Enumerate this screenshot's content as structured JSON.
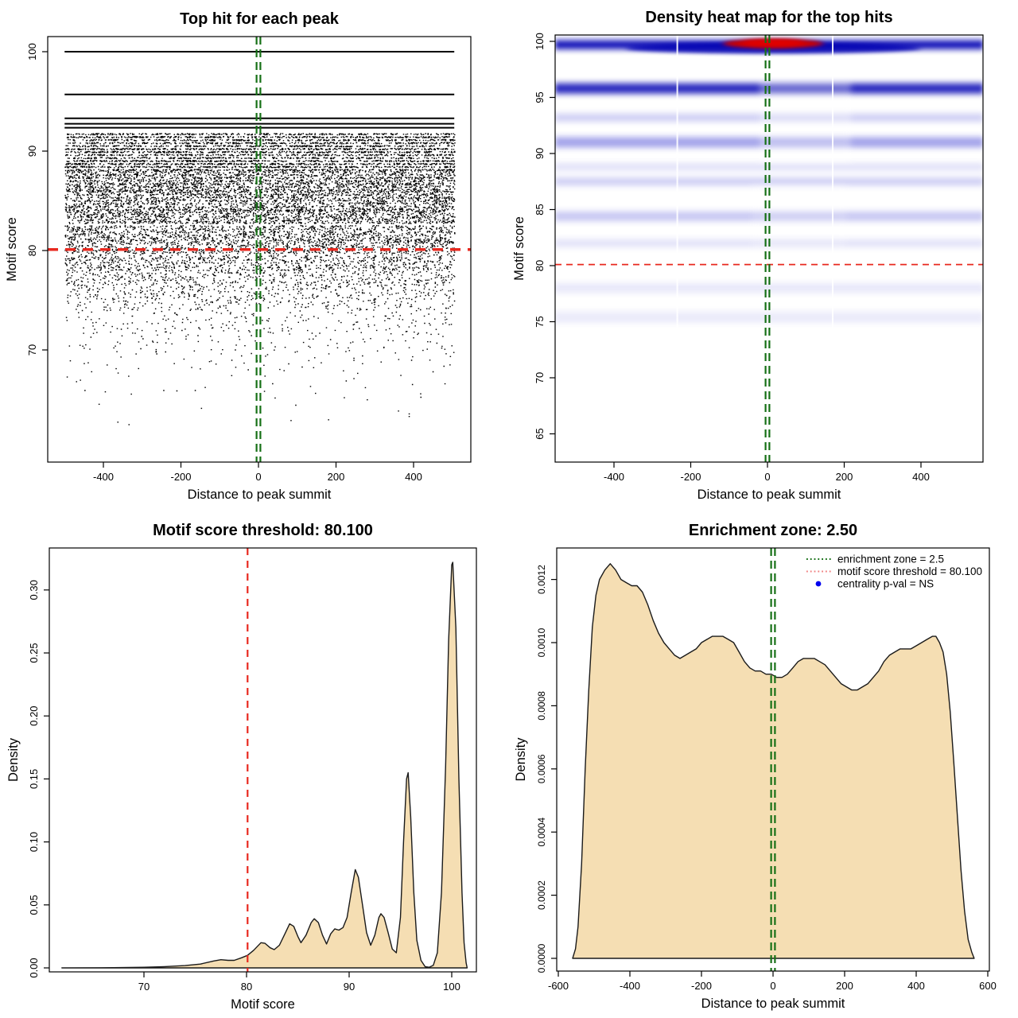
{
  "figure": {
    "background": "#ffffff",
    "colors": {
      "wheat_fill": "#F5DEB3",
      "curve_stroke": "#1a1a1a",
      "red_line": "#E8291F",
      "legend_red": "#F08080",
      "green_line": "#167016",
      "legend_blue": "#0000EE",
      "heat_blue": "#2222CC",
      "heat_dark_blue": "#0000B2",
      "heat_red": "#CC0000",
      "axis": "#000000"
    }
  },
  "chart_data": [
    {
      "id": "top-left",
      "type": "scatter",
      "title": "Top hit for each peak",
      "xlabel": "Distance to peak summit",
      "ylabel": "Motif score",
      "xlim": [
        -510,
        510
      ],
      "ylim": [
        58.5,
        101.6
      ],
      "xticks": {
        "values": [
          -400,
          -200,
          0,
          200,
          400
        ],
        "labels": [
          "-400",
          "-200",
          "0",
          "200",
          "400"
        ]
      },
      "yticks": {
        "values": [
          70,
          80,
          90,
          100
        ],
        "labels": [
          "70",
          "80",
          "90",
          "100"
        ]
      },
      "threshold_score": 80.1,
      "zone_center": 0,
      "point_color": "#000000",
      "solid_scores": [
        100.0,
        95.7,
        93.3,
        92.75,
        92.35
      ],
      "row_ranges": [
        {
          "from": 91.7,
          "to": 89.9,
          "step": 0.3,
          "density": 0.97
        },
        {
          "from": 89.6,
          "to": 88.1,
          "step": 0.3,
          "density": 0.9
        },
        {
          "from": 87.9,
          "to": 86.1,
          "step": 0.3,
          "density": 0.85
        },
        {
          "from": 85.9,
          "to": 84.1,
          "step": 0.3,
          "density": 0.78
        },
        {
          "from": 83.9,
          "to": 82.6,
          "step": 0.27,
          "density": 0.7
        },
        {
          "from": 82.4,
          "to": 81.0,
          "step": 0.27,
          "density": 0.62
        },
        {
          "from": 80.8,
          "to": 79.6,
          "step": 0.25,
          "density": 0.5
        },
        {
          "from": 79.4,
          "to": 78.1,
          "step": 0.25,
          "density": 0.38
        },
        {
          "from": 77.9,
          "to": 76.6,
          "step": 0.25,
          "density": 0.27
        },
        {
          "from": 76.4,
          "to": 75.1,
          "step": 0.25,
          "density": 0.18
        },
        {
          "from": 74.9,
          "to": 74.0,
          "step": 0.25,
          "density": 0.12
        },
        {
          "from": 73.8,
          "to": 72.0,
          "step": 0.3,
          "density": 0.07
        },
        {
          "from": 71.8,
          "to": 70.0,
          "step": 0.3,
          "density": 0.045
        },
        {
          "from": 69.8,
          "to": 68.0,
          "step": 0.35,
          "density": 0.025
        },
        {
          "from": 67.6,
          "to": 65.0,
          "step": 0.4,
          "density": 0.012
        },
        {
          "from": 64.5,
          "to": 62.3,
          "step": 0.5,
          "density": 0.005
        }
      ]
    },
    {
      "id": "top-right",
      "type": "heatmap",
      "title": "Density heat map for the top hits",
      "xlabel": "Distance to peak summit",
      "ylabel": "Motif score",
      "xlim": [
        -550,
        560
      ],
      "ylim": [
        63,
        100.5
      ],
      "xticks": {
        "values": [
          -400,
          -200,
          0,
          200,
          400
        ],
        "labels": [
          "-400",
          "-200",
          "0",
          "200",
          "400"
        ]
      },
      "yticks": {
        "values": [
          65,
          70,
          75,
          80,
          85,
          90,
          95,
          100
        ],
        "labels": [
          "65",
          "70",
          "75",
          "80",
          "85",
          "90",
          "95",
          "100"
        ]
      },
      "threshold_score": 80.1,
      "zone_center": 0,
      "bands": [
        {
          "score": 99.7,
          "intensity": 0.97,
          "half": 5.5
        },
        {
          "score": 95.8,
          "intensity": 0.85,
          "half": 6.5
        },
        {
          "score": 93.2,
          "intensity": 0.22,
          "half": 5
        },
        {
          "score": 91.0,
          "intensity": 0.42,
          "half": 6.5
        },
        {
          "score": 88.8,
          "intensity": 0.13,
          "half": 5
        },
        {
          "score": 87.5,
          "intensity": 0.22,
          "half": 5
        },
        {
          "score": 84.4,
          "intensity": 0.25,
          "half": 6
        },
        {
          "score": 82.0,
          "intensity": 0.13,
          "half": 5
        },
        {
          "score": 78.0,
          "intensity": 0.1,
          "half": 6
        },
        {
          "score": 75.4,
          "intensity": 0.09,
          "half": 7
        }
      ],
      "red_hotspot": {
        "x_center": 15,
        "score": 99.8,
        "x_halfwidth": 130,
        "note": "high-density red lens at top center"
      },
      "white_columns_x": [
        -235,
        170
      ]
    },
    {
      "id": "bottom-left",
      "type": "density-area",
      "title": "Motif score threshold: 80.100",
      "xlabel": "Motif score",
      "ylabel": "Density",
      "xlim": [
        62,
        101.5
      ],
      "ylim": [
        0,
        0.333
      ],
      "xticks": {
        "values": [
          70,
          80,
          90,
          100
        ],
        "labels": [
          "70",
          "80",
          "90",
          "100"
        ]
      },
      "yticks": {
        "values": [
          0.0,
          0.05,
          0.1,
          0.15,
          0.2,
          0.25,
          0.3
        ],
        "labels": [
          "0.00",
          "0.05",
          "0.10",
          "0.15",
          "0.20",
          "0.25",
          "0.30"
        ]
      },
      "vline": {
        "x": 80.1,
        "color_key": "red_line",
        "style": "dashed"
      },
      "curve": [
        [
          62,
          0
        ],
        [
          67,
          0.0002
        ],
        [
          70,
          0.0005
        ],
        [
          72,
          0.001
        ],
        [
          74,
          0.0018
        ],
        [
          75.5,
          0.003
        ],
        [
          76.8,
          0.0055
        ],
        [
          77.5,
          0.0065
        ],
        [
          78.2,
          0.006
        ],
        [
          78.8,
          0.006
        ],
        [
          79.5,
          0.008
        ],
        [
          80.1,
          0.01
        ],
        [
          80.7,
          0.014
        ],
        [
          81.4,
          0.02
        ],
        [
          81.8,
          0.0195
        ],
        [
          82.3,
          0.016
        ],
        [
          82.7,
          0.0145
        ],
        [
          83.2,
          0.018
        ],
        [
          83.8,
          0.028
        ],
        [
          84.2,
          0.035
        ],
        [
          84.6,
          0.033
        ],
        [
          85.0,
          0.025
        ],
        [
          85.3,
          0.02
        ],
        [
          85.8,
          0.026
        ],
        [
          86.3,
          0.036
        ],
        [
          86.6,
          0.039
        ],
        [
          87.0,
          0.036
        ],
        [
          87.4,
          0.026
        ],
        [
          87.8,
          0.019
        ],
        [
          88.2,
          0.027
        ],
        [
          88.6,
          0.031
        ],
        [
          89.0,
          0.03
        ],
        [
          89.4,
          0.032
        ],
        [
          89.8,
          0.04
        ],
        [
          90.2,
          0.06
        ],
        [
          90.6,
          0.078
        ],
        [
          90.9,
          0.072
        ],
        [
          91.3,
          0.05
        ],
        [
          91.7,
          0.028
        ],
        [
          92.1,
          0.018
        ],
        [
          92.5,
          0.026
        ],
        [
          92.9,
          0.04
        ],
        [
          93.1,
          0.043
        ],
        [
          93.4,
          0.04
        ],
        [
          93.8,
          0.028
        ],
        [
          94.2,
          0.015
        ],
        [
          94.6,
          0.012
        ],
        [
          95.0,
          0.04
        ],
        [
          95.3,
          0.1
        ],
        [
          95.6,
          0.15
        ],
        [
          95.75,
          0.155
        ],
        [
          96.0,
          0.12
        ],
        [
          96.3,
          0.06
        ],
        [
          96.6,
          0.022
        ],
        [
          97.0,
          0.006
        ],
        [
          97.4,
          0.001
        ],
        [
          97.8,
          0.0005
        ],
        [
          98.2,
          0.002
        ],
        [
          98.6,
          0.012
        ],
        [
          99.0,
          0.06
        ],
        [
          99.4,
          0.16
        ],
        [
          99.7,
          0.26
        ],
        [
          100.0,
          0.32
        ],
        [
          100.1,
          0.322
        ],
        [
          100.4,
          0.27
        ],
        [
          100.7,
          0.15
        ],
        [
          101.0,
          0.06
        ],
        [
          101.2,
          0.02
        ],
        [
          101.4,
          0.004
        ],
        [
          101.5,
          0
        ]
      ]
    },
    {
      "id": "bottom-right",
      "type": "density-area",
      "title": "Enrichment zone: 2.50",
      "xlabel": "Distance to peak summit",
      "ylabel": "Density",
      "xlim": [
        -600,
        600
      ],
      "ylim": [
        0,
        0.00134
      ],
      "xticks": {
        "values": [
          -600,
          -400,
          -200,
          0,
          200,
          400,
          600
        ],
        "labels": [
          "-600",
          "-400",
          "-200",
          "0",
          "200",
          "400",
          "600"
        ]
      },
      "yticks": {
        "values": [
          0.0,
          0.0002,
          0.0004,
          0.0006,
          0.0008,
          0.001,
          0.0012
        ],
        "labels": [
          "0.0000",
          "0.0002",
          "0.0004",
          "0.0006",
          "0.0008",
          "0.0010",
          "0.0012"
        ]
      },
      "vline": {
        "x": 0,
        "color_key": "green_line",
        "style": "double-dashed"
      },
      "curve": [
        [
          -560,
          0
        ],
        [
          -552,
          3e-05
        ],
        [
          -545,
          0.0001
        ],
        [
          -535,
          0.0003
        ],
        [
          -525,
          0.0006
        ],
        [
          -515,
          0.00085
        ],
        [
          -505,
          0.00105
        ],
        [
          -495,
          0.00115
        ],
        [
          -485,
          0.0012
        ],
        [
          -470,
          0.00123
        ],
        [
          -455,
          0.00125
        ],
        [
          -440,
          0.00123
        ],
        [
          -425,
          0.0012
        ],
        [
          -410,
          0.00119
        ],
        [
          -395,
          0.00118
        ],
        [
          -380,
          0.00118
        ],
        [
          -365,
          0.00116
        ],
        [
          -350,
          0.00112
        ],
        [
          -335,
          0.00107
        ],
        [
          -320,
          0.00103
        ],
        [
          -305,
          0.001
        ],
        [
          -290,
          0.00098
        ],
        [
          -275,
          0.00096
        ],
        [
          -260,
          0.00095
        ],
        [
          -245,
          0.00096
        ],
        [
          -230,
          0.00097
        ],
        [
          -215,
          0.00098
        ],
        [
          -200,
          0.001
        ],
        [
          -185,
          0.00101
        ],
        [
          -170,
          0.00102
        ],
        [
          -155,
          0.00102
        ],
        [
          -140,
          0.00102
        ],
        [
          -125,
          0.00101
        ],
        [
          -110,
          0.001
        ],
        [
          -95,
          0.00097
        ],
        [
          -80,
          0.00094
        ],
        [
          -65,
          0.00092
        ],
        [
          -50,
          0.00091
        ],
        [
          -35,
          0.00091
        ],
        [
          -20,
          0.0009
        ],
        [
          -5,
          0.0009
        ],
        [
          10,
          0.00089
        ],
        [
          25,
          0.00089
        ],
        [
          40,
          0.0009
        ],
        [
          55,
          0.00092
        ],
        [
          70,
          0.00094
        ],
        [
          85,
          0.00095
        ],
        [
          100,
          0.00095
        ],
        [
          115,
          0.00095
        ],
        [
          130,
          0.00094
        ],
        [
          145,
          0.00093
        ],
        [
          160,
          0.00091
        ],
        [
          175,
          0.00089
        ],
        [
          190,
          0.00087
        ],
        [
          205,
          0.00086
        ],
        [
          220,
          0.00085
        ],
        [
          235,
          0.00085
        ],
        [
          250,
          0.00086
        ],
        [
          265,
          0.00087
        ],
        [
          280,
          0.00089
        ],
        [
          295,
          0.00091
        ],
        [
          310,
          0.00094
        ],
        [
          325,
          0.00096
        ],
        [
          340,
          0.00097
        ],
        [
          355,
          0.00098
        ],
        [
          370,
          0.00098
        ],
        [
          385,
          0.00098
        ],
        [
          400,
          0.00099
        ],
        [
          415,
          0.001
        ],
        [
          430,
          0.00101
        ],
        [
          445,
          0.00102
        ],
        [
          455,
          0.00102
        ],
        [
          465,
          0.001
        ],
        [
          475,
          0.00097
        ],
        [
          485,
          0.0009
        ],
        [
          495,
          0.00078
        ],
        [
          505,
          0.00062
        ],
        [
          515,
          0.00045
        ],
        [
          525,
          0.00028
        ],
        [
          535,
          0.00015
        ],
        [
          545,
          6e-05
        ],
        [
          555,
          2e-05
        ],
        [
          562,
          0
        ]
      ],
      "legend": {
        "items": [
          {
            "symbol": "dotted",
            "color_key": "green_line",
            "label": "enrichment zone = 2.5"
          },
          {
            "symbol": "dotted",
            "color_key": "legend_red",
            "label": "motif score threshold = 80.100"
          },
          {
            "symbol": "point",
            "color_key": "legend_blue",
            "label": "centrality p-val = NS"
          }
        ]
      }
    }
  ]
}
